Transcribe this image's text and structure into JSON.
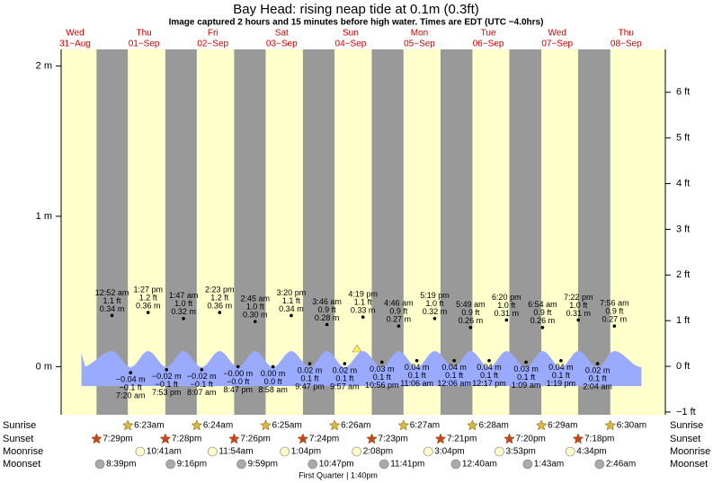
{
  "chart_data": {
    "type": "tide",
    "title": "Bay Head: rising  neap tide at 0.1m (0.3ft)",
    "subtitle": "Image captured 2 hours and 15 minutes before high water. Times are EDT (UTC −4.0hrs)",
    "ylim": [
      -0.32,
      2.11
    ],
    "yticks": [
      {
        "value": 2,
        "label": "2 m"
      },
      {
        "value": 1,
        "label": "1 m"
      },
      {
        "value": 0,
        "label": "0 m"
      }
    ],
    "y2lim": [
      -1.06,
      6.94
    ],
    "y2ticks": [
      {
        "value": 6,
        "label": "6 ft"
      },
      {
        "value": 5,
        "label": "5 ft"
      },
      {
        "value": 4,
        "label": "4 ft"
      },
      {
        "value": 3,
        "label": "3 ft"
      },
      {
        "value": 2,
        "label": "2 ft"
      },
      {
        "value": 1,
        "label": "1 ft"
      },
      {
        "value": 0,
        "label": "0 ft"
      },
      {
        "value": -1,
        "label": "−1 ft"
      }
    ],
    "row_labels": [
      "Sunrise",
      "Sunset",
      "Moonrise",
      "Moonset"
    ],
    "moon_phase": "First Quarter | 1:40pm",
    "days": [
      {
        "day": "Wed",
        "date": "31−Aug",
        "sunset": "7:29pm",
        "moonset": "8:39pm",
        "highs": [],
        "lows": []
      },
      {
        "day": "Thu",
        "date": "01−Sep",
        "sunrise": "6:23am",
        "sunset": "7:28pm",
        "moonrise": "10:41am",
        "moonset": "9:16pm",
        "highs": [
          {
            "time": "12:52 am",
            "ft_label": "1.1 ft",
            "m": 0.34,
            "m_label": "0.34 m"
          },
          {
            "time": "1:27 pm",
            "ft_label": "1.2 ft",
            "m": 0.36,
            "m_label": "0.36 m"
          }
        ],
        "lows": [
          {
            "time": "7:20 am",
            "ft_label": "−0.1 ft",
            "m": -0.04,
            "m_label": "−0.04 m"
          },
          {
            "time": "7:53 pm",
            "ft_label": "−0.1 ft",
            "m": -0.02,
            "m_label": "−0.02 m"
          }
        ]
      },
      {
        "day": "Fri",
        "date": "02−Sep",
        "sunrise": "6:24am",
        "sunset": "7:26pm",
        "moonrise": "11:54am",
        "moonset": "9:59pm",
        "highs": [
          {
            "time": "1:47 am",
            "ft_label": "1.0 ft",
            "m": 0.32,
            "m_label": "0.32 m"
          },
          {
            "time": "2:23 pm",
            "ft_label": "1.2 ft",
            "m": 0.36,
            "m_label": "0.36 m"
          }
        ],
        "lows": [
          {
            "time": "8:07 am",
            "ft_label": "−0.1 ft",
            "m": -0.02,
            "m_label": "−0.02 m"
          },
          {
            "time": "8:47 pm",
            "ft_label": "−0.0 ft",
            "m": 0,
            "m_label": "−0.00 m"
          }
        ]
      },
      {
        "day": "Sat",
        "date": "03−Sep",
        "sunrise": "6:25am",
        "sunset": "7:24pm",
        "moonrise": "1:04pm",
        "moonset": "10:47pm",
        "highs": [
          {
            "time": "2:45 am",
            "ft_label": "1.0 ft",
            "m": 0.3,
            "m_label": "0.30 m"
          },
          {
            "time": "3:20 pm",
            "ft_label": "1.1 ft",
            "m": 0.34,
            "m_label": "0.34 m"
          }
        ],
        "lows": [
          {
            "time": "8:58 am",
            "ft_label": "0.0 ft",
            "m": 0,
            "m_label": "0.00 m"
          },
          {
            "time": "9:47 pm",
            "ft_label": "0.1 ft",
            "m": 0.02,
            "m_label": "0.02 m"
          }
        ]
      },
      {
        "day": "Sun",
        "date": "04−Sep",
        "sunrise": "6:26am",
        "sunset": "7:23pm",
        "moonrise": "2:08pm",
        "moonset": "11:41pm",
        "highs": [
          {
            "time": "3:46 am",
            "ft_label": "0.9 ft",
            "m": 0.28,
            "m_label": "0.28 m"
          },
          {
            "time": "4:19 pm",
            "ft_label": "1.1 ft",
            "m": 0.33,
            "m_label": "0.33 m"
          }
        ],
        "lows": [
          {
            "time": "9:57 am",
            "ft_label": "0.1 ft",
            "m": 0.02,
            "m_label": "0.02 m"
          },
          {
            "time": "10:56 pm",
            "ft_label": "0.1 ft",
            "m": 0.03,
            "m_label": "0.03 m"
          }
        ]
      },
      {
        "day": "Mon",
        "date": "05−Sep",
        "sunrise": "6:27am",
        "sunset": "7:21pm",
        "moonrise": "3:04pm",
        "highs": [
          {
            "time": "4:46 am",
            "ft_label": "0.9 ft",
            "m": 0.27,
            "m_label": "0.27 m"
          },
          {
            "time": "5:19 pm",
            "ft_label": "1.0 ft",
            "m": 0.32,
            "m_label": "0.32 m"
          }
        ],
        "lows": [
          {
            "time": "11:06 am",
            "ft_label": "0.1 ft",
            "m": 0.04,
            "m_label": "0.04 m"
          }
        ]
      },
      {
        "day": "Tue",
        "date": "06−Sep",
        "sunrise": "6:28am",
        "sunset": "7:20pm",
        "moonrise": "3:53pm",
        "moonset": "12:40am",
        "highs": [
          {
            "time": "5:49 am",
            "ft_label": "0.9 ft",
            "m": 0.26,
            "m_label": "0.26 m"
          },
          {
            "time": "6:20 pm",
            "ft_label": "1.0 ft",
            "m": 0.31,
            "m_label": "0.31 m"
          }
        ],
        "lows": [
          {
            "time": "12:06 am",
            "ft_label": "0.1 ft",
            "m": 0.04,
            "m_label": "0.04 m"
          },
          {
            "time": "12:17 pm",
            "ft_label": "0.1 ft",
            "m": 0.04,
            "m_label": "0.04 m"
          }
        ]
      },
      {
        "day": "Wed",
        "date": "07−Sep",
        "sunrise": "6:29am",
        "sunset": "7:18pm",
        "moonrise": "4:34pm",
        "moonset": "1:43am",
        "highs": [
          {
            "time": "6:54 am",
            "ft_label": "0.9 ft",
            "m": 0.26,
            "m_label": "0.26 m"
          },
          {
            "time": "7:22 pm",
            "ft_label": "1.0 ft",
            "m": 0.31,
            "m_label": "0.31 m"
          }
        ],
        "lows": [
          {
            "time": "1:09 am",
            "ft_label": "0.1 ft",
            "m": 0.03,
            "m_label": "0.03 m"
          },
          {
            "time": "1:19 pm",
            "ft_label": "0.1 ft",
            "m": 0.04,
            "m_label": "0.04 m"
          }
        ]
      },
      {
        "day": "Thu",
        "date": "08−Sep",
        "sunrise": "6:30am",
        "moonset": "2:46am",
        "highs": [
          {
            "time": "7:56 am",
            "ft_label": "0.9 ft",
            "m": 0.27,
            "m_label": "0.27 m"
          }
        ],
        "lows": [
          {
            "time": "2:04 am",
            "ft_label": "0.1 ft",
            "m": 0.02,
            "m_label": "0.02 m"
          }
        ]
      }
    ]
  }
}
